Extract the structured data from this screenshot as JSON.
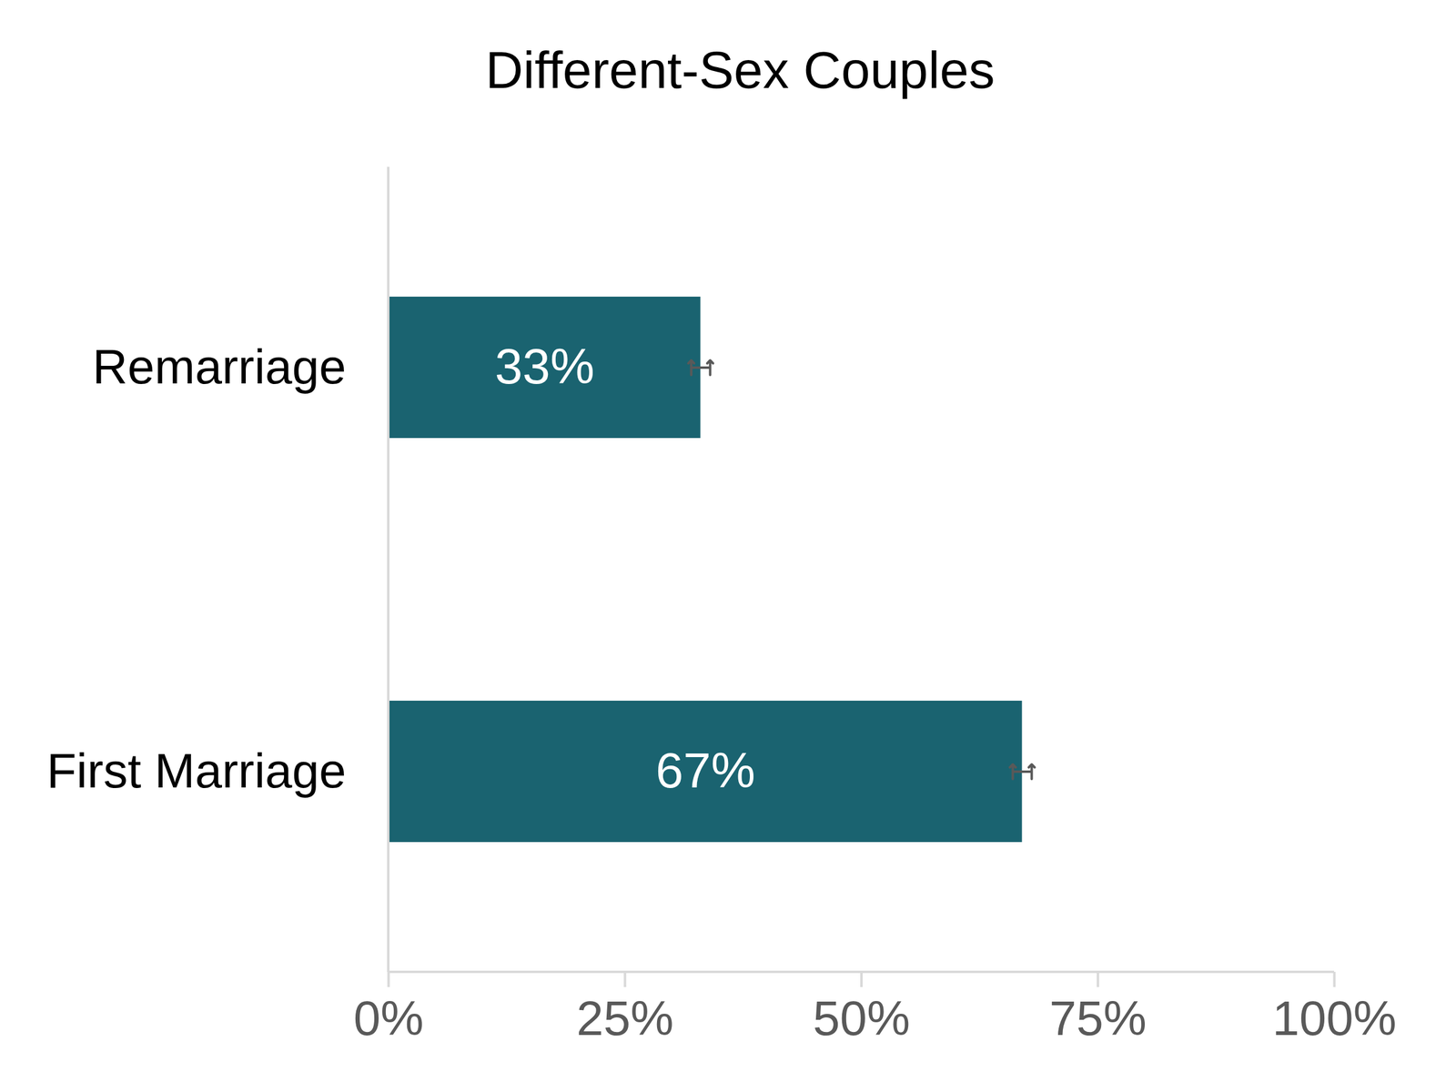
{
  "chart_data": {
    "type": "bar",
    "title": "Different-Sex Couples",
    "orientation": "horizontal",
    "categories": [
      "Remarriage",
      "First Marriage"
    ],
    "values": [
      33,
      67
    ],
    "value_labels": [
      "33%",
      "67%"
    ],
    "data_labels": true,
    "error": [
      1,
      1
    ],
    "color": "#1a6370",
    "xlim": [
      0,
      100
    ],
    "xticks": [
      {
        "value": 0,
        "label": "0%"
      },
      {
        "value": 25,
        "label": "25%"
      },
      {
        "value": 50,
        "label": "50%"
      },
      {
        "value": 75,
        "label": "75%"
      },
      {
        "value": 100,
        "label": "100%"
      }
    ],
    "grid": false
  }
}
